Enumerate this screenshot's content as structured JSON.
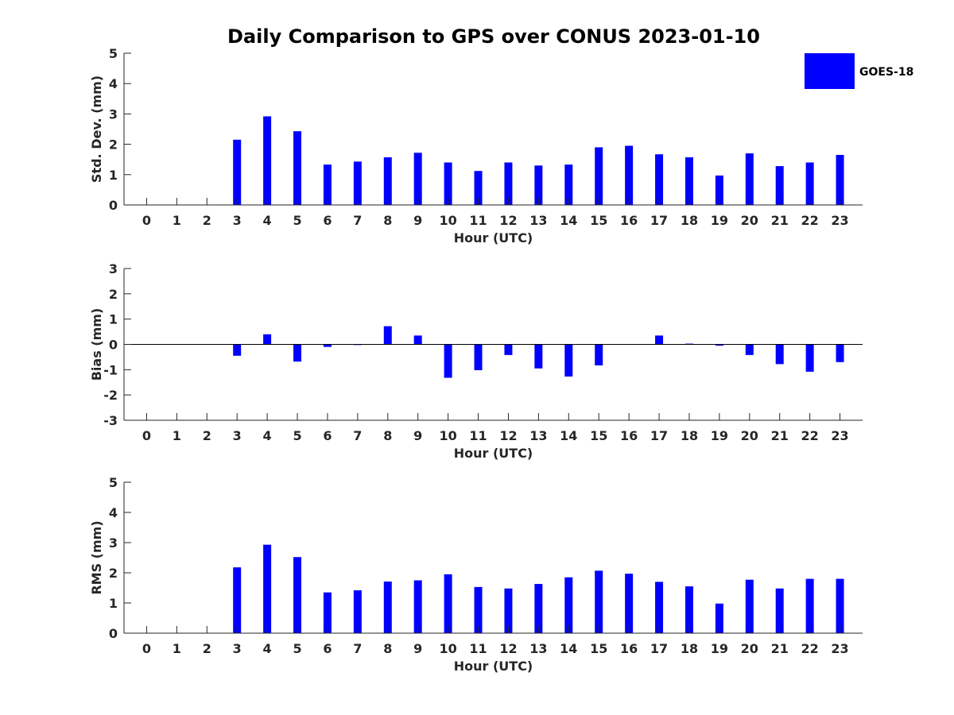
{
  "title": "Daily Comparison to GPS over CONUS 2023-01-10",
  "legend": {
    "label": "GOES-18",
    "color": "#0000ff",
    "placement": "top-right"
  },
  "chart_data": [
    {
      "type": "bar",
      "xlabel": "Hour (UTC)",
      "ylabel": "Std. Dev. (mm)",
      "ylim": [
        0,
        5
      ],
      "yticks": [
        "0",
        "1",
        "2",
        "3",
        "4",
        "5"
      ],
      "categories": [
        "0",
        "1",
        "2",
        "3",
        "4",
        "5",
        "6",
        "7",
        "8",
        "9",
        "10",
        "11",
        "12",
        "13",
        "14",
        "15",
        "16",
        "17",
        "18",
        "19",
        "20",
        "21",
        "22",
        "23"
      ],
      "series": [
        {
          "name": "GOES-18",
          "color": "#0000ff",
          "values": [
            0,
            0,
            0,
            2.15,
            2.92,
            2.43,
            1.33,
            1.43,
            1.57,
            1.72,
            1.4,
            1.12,
            1.4,
            1.3,
            1.33,
            1.9,
            1.95,
            1.67,
            1.57,
            0.97,
            1.7,
            1.28,
            1.4,
            1.65
          ]
        }
      ],
      "grid": false
    },
    {
      "type": "bar",
      "xlabel": "Hour (UTC)",
      "ylabel": "Bias (mm)",
      "ylim": [
        -3,
        3
      ],
      "yticks": [
        "-3",
        "-2",
        "-1",
        "0",
        "1",
        "2",
        "3"
      ],
      "categories": [
        "0",
        "1",
        "2",
        "3",
        "4",
        "5",
        "6",
        "7",
        "8",
        "9",
        "10",
        "11",
        "12",
        "13",
        "14",
        "15",
        "16",
        "17",
        "18",
        "19",
        "20",
        "21",
        "22",
        "23"
      ],
      "series": [
        {
          "name": "GOES-18",
          "color": "#0000ff",
          "values": [
            0,
            0,
            0,
            -0.45,
            0.4,
            -0.68,
            -0.1,
            -0.02,
            0.72,
            0.35,
            -1.32,
            -1.02,
            -0.42,
            -0.95,
            -1.27,
            -0.83,
            0,
            0.35,
            0.03,
            -0.05,
            -0.42,
            -0.78,
            -1.08,
            -0.7
          ]
        }
      ],
      "grid": false,
      "zero_line": true
    },
    {
      "type": "bar",
      "xlabel": "Hour (UTC)",
      "ylabel": "RMS (mm)",
      "ylim": [
        0,
        5
      ],
      "yticks": [
        "0",
        "1",
        "2",
        "3",
        "4",
        "5"
      ],
      "categories": [
        "0",
        "1",
        "2",
        "3",
        "4",
        "5",
        "6",
        "7",
        "8",
        "9",
        "10",
        "11",
        "12",
        "13",
        "14",
        "15",
        "16",
        "17",
        "18",
        "19",
        "20",
        "21",
        "22",
        "23"
      ],
      "series": [
        {
          "name": "GOES-18",
          "color": "#0000ff",
          "values": [
            0,
            0,
            0,
            2.18,
            2.93,
            2.52,
            1.35,
            1.42,
            1.71,
            1.75,
            1.95,
            1.53,
            1.48,
            1.63,
            1.85,
            2.07,
            1.97,
            1.7,
            1.55,
            0.98,
            1.77,
            1.48,
            1.8,
            1.8
          ]
        }
      ],
      "grid": false
    }
  ]
}
